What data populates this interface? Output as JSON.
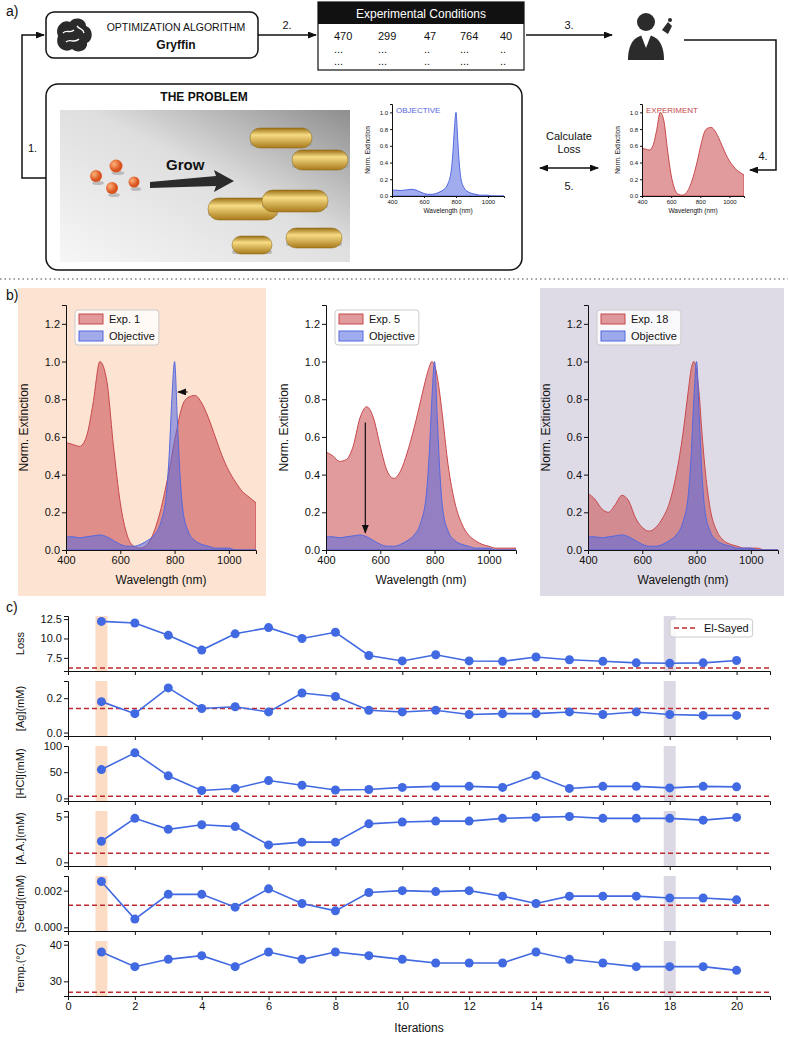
{
  "panel_labels": [
    "a)",
    "b)",
    "c)"
  ],
  "diagram": {
    "algorithm": {
      "title": "OPTIMIZATION ALGORITHM",
      "name": "Gryffin"
    },
    "conditions": {
      "title": "Experimental Conditions",
      "rows": [
        [
          "470",
          "299",
          "47",
          "764",
          "40"
        ],
        [
          "...",
          "...",
          "..",
          "...",
          ".."
        ],
        [
          "...",
          "...",
          "..",
          "...",
          ".."
        ]
      ]
    },
    "steps": [
      "1.",
      "2.",
      "3.",
      "4.",
      "5."
    ],
    "problem": {
      "title": "THE PROBLEM",
      "action": "Grow"
    },
    "compare": "Calculate Loss"
  },
  "chart_data": [
    {
      "type": "area",
      "title": "OBJECTIVE",
      "xlabel": "Wavelength (nm)",
      "ylabel": "Norm. Extinction",
      "x": [
        400,
        425,
        450,
        475,
        500,
        525,
        550,
        575,
        600,
        625,
        650,
        675,
        700,
        725,
        750,
        770,
        780,
        790,
        800,
        810,
        820,
        830,
        850,
        875,
        900,
        925,
        950,
        975,
        1000,
        1025,
        1050,
        1075,
        1100
      ],
      "series": [
        {
          "color": "#5468e0",
          "values": [
            0.07,
            0.07,
            0.065,
            0.07,
            0.075,
            0.08,
            0.07,
            0.05,
            0.03,
            0.02,
            0.02,
            0.03,
            0.05,
            0.08,
            0.15,
            0.3,
            0.5,
            0.8,
            1.0,
            0.7,
            0.4,
            0.22,
            0.1,
            0.05,
            0.03,
            0.02,
            0.01,
            0.01,
            0.01,
            0,
            0,
            0,
            0
          ]
        }
      ],
      "xlim": [
        400,
        1100
      ],
      "xticks": [
        400,
        600,
        800,
        1000
      ],
      "ylim": [
        0,
        1.1
      ],
      "yticks": [
        {
          "value": 0,
          "label": "0.0"
        },
        0.2,
        0.4,
        0.6,
        0.8,
        {
          "value": 1,
          "label": "1.0"
        }
      ]
    },
    {
      "type": "area",
      "title": "EXPERIMENT",
      "xlabel": "Wavelength (nm)",
      "ylabel": "Norm. Extinction",
      "x": [
        400,
        425,
        450,
        475,
        500,
        525,
        550,
        575,
        600,
        625,
        650,
        675,
        700,
        725,
        750,
        770,
        780,
        790,
        800,
        810,
        820,
        830,
        850,
        875,
        900,
        925,
        950,
        975,
        1000,
        1025,
        1050,
        1075,
        1100
      ],
      "series": [
        {
          "color": "#c8484c",
          "values": [
            0.57,
            0.56,
            0.55,
            0.6,
            0.78,
            1.0,
            0.9,
            0.55,
            0.25,
            0.08,
            0.02,
            0.01,
            0.03,
            0.1,
            0.22,
            0.35,
            0.42,
            0.5,
            0.58,
            0.65,
            0.72,
            0.77,
            0.81,
            0.82,
            0.78,
            0.7,
            0.6,
            0.5,
            0.42,
            0.36,
            0.31,
            0.28,
            0.25
          ]
        }
      ],
      "xlim": [
        400,
        1100
      ],
      "xticks": [
        400,
        600,
        800,
        1000
      ],
      "ylim": [
        0,
        1.1
      ],
      "yticks": [
        {
          "value": 0,
          "label": "0.0"
        },
        0.2,
        0.4,
        0.6,
        0.8,
        {
          "value": 1,
          "label": "1.0"
        }
      ]
    },
    {
      "type": "area",
      "xlabel": "Wavelength (nm)",
      "ylabel": "Norm. Extinction",
      "legend": "upper left",
      "x": [
        400,
        425,
        450,
        475,
        500,
        525,
        550,
        575,
        600,
        625,
        650,
        675,
        700,
        725,
        750,
        770,
        780,
        790,
        800,
        810,
        820,
        830,
        850,
        875,
        900,
        925,
        950,
        975,
        1000,
        1025,
        1050,
        1075,
        1100
      ],
      "series": [
        {
          "name": "Exp. 1",
          "color": "#c8484c",
          "values": [
            0.57,
            0.56,
            0.55,
            0.6,
            0.78,
            1.0,
            0.9,
            0.55,
            0.25,
            0.08,
            0.02,
            0.01,
            0.03,
            0.1,
            0.22,
            0.35,
            0.42,
            0.5,
            0.58,
            0.65,
            0.72,
            0.77,
            0.81,
            0.82,
            0.78,
            0.7,
            0.6,
            0.5,
            0.42,
            0.36,
            0.31,
            0.28,
            0.25
          ]
        },
        {
          "name": "Objective",
          "color": "#5468e0",
          "values": [
            0.07,
            0.07,
            0.065,
            0.07,
            0.075,
            0.08,
            0.07,
            0.05,
            0.03,
            0.02,
            0.02,
            0.03,
            0.05,
            0.08,
            0.15,
            0.3,
            0.5,
            0.8,
            1.0,
            0.7,
            0.4,
            0.22,
            0.1,
            0.05,
            0.03,
            0.02,
            0.01,
            0.01,
            0.01,
            0,
            0,
            0,
            0
          ]
        }
      ],
      "xlim": [
        400,
        1100
      ],
      "xticks": [
        400,
        600,
        800,
        1000
      ],
      "ylim": [
        0,
        1.3
      ],
      "yticks": [
        {
          "value": 0,
          "label": "0.0"
        },
        0.2,
        0.4,
        0.6,
        0.8,
        {
          "value": 1,
          "label": "1.0"
        },
        1.2
      ]
    },
    {
      "type": "area",
      "xlabel": "Wavelength (nm)",
      "ylabel": "Norm. Extinction",
      "legend": "upper left",
      "x": [
        400,
        425,
        450,
        475,
        500,
        525,
        550,
        575,
        600,
        625,
        650,
        675,
        700,
        725,
        750,
        770,
        780,
        790,
        800,
        810,
        820,
        830,
        850,
        875,
        900,
        925,
        950,
        975,
        1000,
        1025,
        1050,
        1075,
        1100
      ],
      "series": [
        {
          "name": "Exp. 5",
          "color": "#c8484c",
          "values": [
            0.52,
            0.5,
            0.47,
            0.48,
            0.55,
            0.7,
            0.76,
            0.7,
            0.55,
            0.42,
            0.38,
            0.42,
            0.52,
            0.65,
            0.8,
            0.92,
            0.97,
            1.0,
            0.98,
            0.92,
            0.82,
            0.7,
            0.45,
            0.25,
            0.14,
            0.08,
            0.05,
            0.03,
            0.02,
            0.01,
            0.01,
            0.01,
            0.01
          ]
        },
        {
          "name": "Objective",
          "color": "#5468e0",
          "values": [
            0.07,
            0.07,
            0.065,
            0.07,
            0.075,
            0.08,
            0.07,
            0.05,
            0.03,
            0.02,
            0.02,
            0.03,
            0.05,
            0.08,
            0.15,
            0.3,
            0.5,
            0.8,
            1.0,
            0.7,
            0.4,
            0.22,
            0.1,
            0.05,
            0.03,
            0.02,
            0.01,
            0.01,
            0.01,
            0,
            0,
            0,
            0
          ]
        }
      ],
      "xlim": [
        400,
        1100
      ],
      "xticks": [
        400,
        600,
        800,
        1000
      ],
      "ylim": [
        0,
        1.3
      ],
      "yticks": [
        {
          "value": 0,
          "label": "0.0"
        },
        0.2,
        0.4,
        0.6,
        0.8,
        {
          "value": 1,
          "label": "1.0"
        },
        1.2
      ]
    },
    {
      "type": "area",
      "xlabel": "Wavelength (nm)",
      "ylabel": "Norm. Extinction",
      "legend": "upper left",
      "x": [
        400,
        425,
        450,
        475,
        500,
        525,
        550,
        575,
        600,
        625,
        650,
        675,
        700,
        725,
        750,
        770,
        780,
        790,
        800,
        810,
        820,
        830,
        850,
        875,
        900,
        925,
        950,
        975,
        1000,
        1025,
        1050,
        1075,
        1100
      ],
      "series": [
        {
          "name": "Exp. 18",
          "color": "#c8484c",
          "values": [
            0.3,
            0.27,
            0.22,
            0.2,
            0.24,
            0.29,
            0.26,
            0.17,
            0.12,
            0.1,
            0.12,
            0.17,
            0.25,
            0.4,
            0.62,
            0.85,
            0.96,
            1.0,
            0.95,
            0.82,
            0.62,
            0.45,
            0.22,
            0.1,
            0.05,
            0.03,
            0.02,
            0.01,
            0.01,
            0.01,
            0,
            0,
            0
          ]
        },
        {
          "name": "Objective",
          "color": "#5468e0",
          "values": [
            0.07,
            0.07,
            0.065,
            0.07,
            0.075,
            0.08,
            0.07,
            0.05,
            0.03,
            0.02,
            0.02,
            0.03,
            0.05,
            0.08,
            0.15,
            0.3,
            0.5,
            0.8,
            1.0,
            0.7,
            0.4,
            0.22,
            0.1,
            0.05,
            0.03,
            0.02,
            0.01,
            0.01,
            0.01,
            0,
            0,
            0,
            0
          ]
        }
      ],
      "xlim": [
        400,
        1100
      ],
      "xticks": [
        400,
        600,
        800,
        1000
      ],
      "ylim": [
        0,
        1.3
      ],
      "yticks": [
        {
          "value": 0,
          "label": "0.0"
        },
        0.2,
        0.4,
        0.6,
        0.8,
        {
          "value": 1,
          "label": "1.0"
        },
        1.2
      ]
    },
    {
      "type": "line",
      "ylabel": "Loss",
      "tick_labels": "y",
      "legend": "upper right",
      "x": [
        1,
        2,
        3,
        4,
        5,
        6,
        7,
        8,
        9,
        10,
        11,
        12,
        13,
        14,
        15,
        16,
        17,
        18,
        19,
        20
      ],
      "series": [
        {
          "color": "#4169e1",
          "marker": "circle",
          "values": [
            12.2,
            12.0,
            10.4,
            8.5,
            10.6,
            11.4,
            10.0,
            10.8,
            7.8,
            7.1,
            7.9,
            7.1,
            7.05,
            7.6,
            7.25,
            7.05,
            6.85,
            6.8,
            6.85,
            7.15
          ]
        }
      ],
      "reference": {
        "name": "El-Sayed",
        "value": 6.2,
        "color": "#c0282d",
        "line_style": "dashed"
      },
      "highlights": [
        1,
        18
      ],
      "xlim": [
        0,
        21
      ],
      "xticks": [
        0,
        2,
        4,
        6,
        8,
        10,
        12,
        14,
        16,
        18,
        20
      ],
      "ylim": [
        5.8,
        12.9
      ],
      "yticks": [
        7.5,
        {
          "value": 10,
          "label": "10.0"
        },
        12.5
      ]
    },
    {
      "type": "line",
      "ylabel": "[Ag](mM)",
      "tick_labels": "y",
      "x": [
        1,
        2,
        3,
        4,
        5,
        6,
        7,
        8,
        9,
        10,
        11,
        12,
        13,
        14,
        15,
        16,
        17,
        18,
        19,
        20
      ],
      "series": [
        {
          "color": "#4169e1",
          "marker": "circle",
          "values": [
            0.18,
            0.11,
            0.26,
            0.14,
            0.15,
            0.12,
            0.23,
            0.21,
            0.13,
            0.12,
            0.13,
            0.105,
            0.11,
            0.11,
            0.12,
            0.105,
            0.12,
            0.105,
            0.1,
            0.1
          ]
        }
      ],
      "reference": {
        "value": 0.14,
        "color": "#c0282d",
        "line_style": "dashed"
      },
      "highlights": [
        1,
        18
      ],
      "xlim": [
        0,
        21
      ],
      "xticks": [
        0,
        2,
        4,
        6,
        8,
        10,
        12,
        14,
        16,
        18,
        20
      ],
      "ylim": [
        -0.02,
        0.3
      ],
      "yticks": [
        {
          "value": 0,
          "label": "0.0"
        },
        0.2
      ]
    },
    {
      "type": "line",
      "ylabel": "[HCl](mM)",
      "tick_labels": "y",
      "x": [
        1,
        2,
        3,
        4,
        5,
        6,
        7,
        8,
        9,
        10,
        11,
        12,
        13,
        14,
        15,
        16,
        17,
        18,
        19,
        20
      ],
      "series": [
        {
          "color": "#4169e1",
          "marker": "circle",
          "values": [
            55,
            87,
            43,
            15,
            19,
            34,
            25,
            16,
            17,
            21,
            23,
            23,
            21,
            44,
            19,
            23,
            23,
            20,
            23,
            22
          ]
        }
      ],
      "reference": {
        "value": 4,
        "color": "#c0282d",
        "line_style": "dashed"
      },
      "highlights": [
        1,
        18
      ],
      "xlim": [
        0,
        21
      ],
      "xticks": [
        0,
        2,
        4,
        6,
        8,
        10,
        12,
        14,
        16,
        18,
        20
      ],
      "ylim": [
        -5,
        100
      ],
      "yticks": [
        0,
        50,
        100
      ]
    },
    {
      "type": "line",
      "ylabel": "[A.A.](mM)",
      "tick_labels": "y",
      "x": [
        1,
        2,
        3,
        4,
        5,
        6,
        7,
        8,
        9,
        10,
        11,
        12,
        13,
        14,
        15,
        16,
        17,
        18,
        19,
        20
      ],
      "series": [
        {
          "color": "#4169e1",
          "marker": "circle",
          "values": [
            2.3,
            4.8,
            3.6,
            4.1,
            3.9,
            1.9,
            2.2,
            2.2,
            4.2,
            4.4,
            4.5,
            4.5,
            4.8,
            4.9,
            5.0,
            4.8,
            4.8,
            4.8,
            4.6,
            4.9
          ]
        }
      ],
      "reference": {
        "value": 1.0,
        "color": "#c0282d",
        "line_style": "dashed"
      },
      "highlights": [
        1,
        18
      ],
      "xlim": [
        0,
        21
      ],
      "xticks": [
        0,
        2,
        4,
        6,
        8,
        10,
        12,
        14,
        16,
        18,
        20
      ],
      "ylim": [
        -0.4,
        5.6
      ],
      "yticks": [
        0,
        5
      ]
    },
    {
      "type": "line",
      "ylabel": "[Seed](mM)",
      "tick_labels": "y",
      "x": [
        1,
        2,
        3,
        4,
        5,
        6,
        7,
        8,
        9,
        10,
        11,
        12,
        13,
        14,
        15,
        16,
        17,
        18,
        19,
        20
      ],
      "series": [
        {
          "color": "#4169e1",
          "marker": "circle",
          "values": [
            0.0025,
            0.00045,
            0.0018,
            0.0018,
            0.0011,
            0.0021,
            0.0013,
            0.0009,
            0.0019,
            0.002,
            0.00195,
            0.002,
            0.0017,
            0.0013,
            0.0017,
            0.0017,
            0.0017,
            0.0016,
            0.0016,
            0.0015
          ]
        }
      ],
      "reference": {
        "value": 0.0012,
        "color": "#c0282d",
        "line_style": "dashed"
      },
      "highlights": [
        1,
        18
      ],
      "xlim": [
        0,
        21
      ],
      "xticks": [
        0,
        2,
        4,
        6,
        8,
        10,
        12,
        14,
        16,
        18,
        20
      ],
      "ylim": [
        -0.0002,
        0.0028
      ],
      "yticks": [
        {
          "value": 0,
          "label": "0.000"
        },
        0.002
      ]
    },
    {
      "type": "line",
      "ylabel": "Temp.(°C)",
      "xlabel": "Iterations",
      "x": [
        1,
        2,
        3,
        4,
        5,
        6,
        7,
        8,
        9,
        10,
        11,
        12,
        13,
        14,
        15,
        16,
        17,
        18,
        19,
        20
      ],
      "series": [
        {
          "color": "#4169e1",
          "marker": "circle",
          "values": [
            38,
            34,
            36,
            37,
            34,
            38,
            36,
            38,
            37,
            36,
            35,
            35,
            35,
            38,
            36,
            35,
            34,
            34,
            34,
            33
          ]
        }
      ],
      "reference": {
        "value": 27,
        "color": "#c0282d",
        "line_style": "dashed"
      },
      "highlights": [
        1,
        18
      ],
      "xlim": [
        0,
        21
      ],
      "xticks": [
        0,
        2,
        4,
        6,
        8,
        10,
        12,
        14,
        16,
        18,
        20
      ],
      "ylim": [
        26,
        41
      ],
      "yticks": [
        30,
        40
      ]
    }
  ]
}
